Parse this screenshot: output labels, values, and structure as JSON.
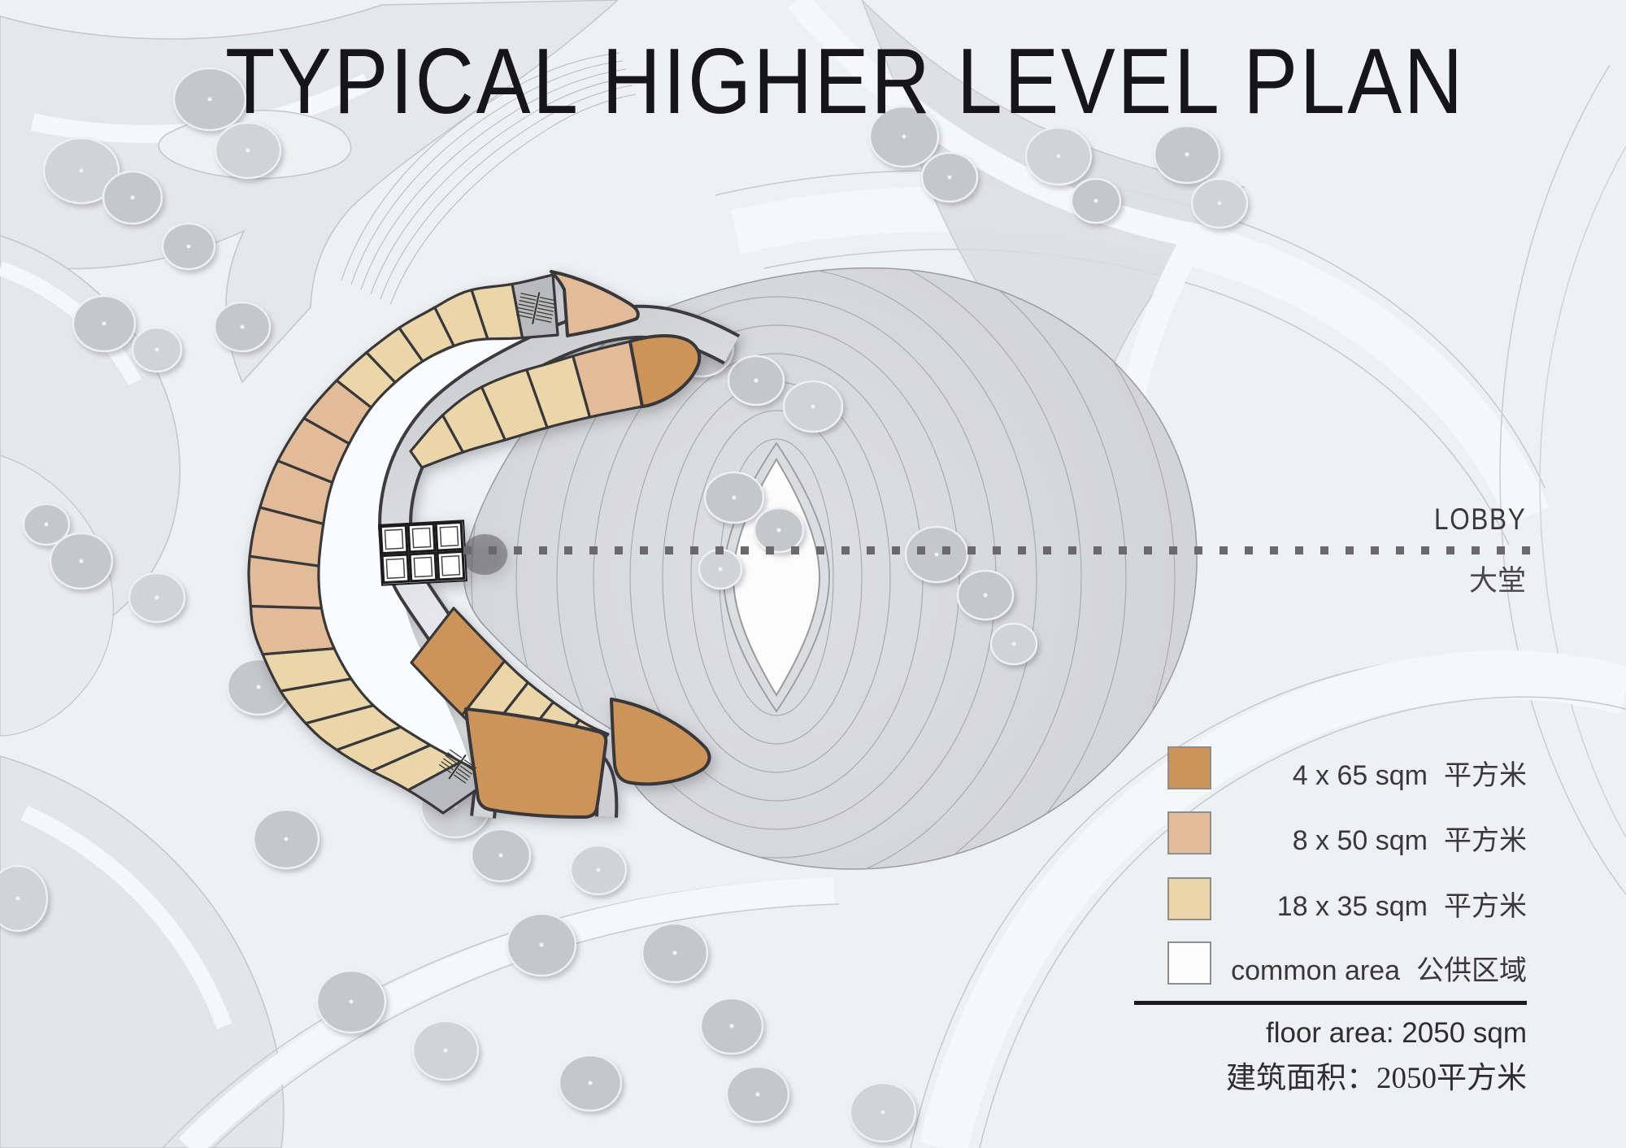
{
  "title": "TYPICAL HIGHER LEVEL PLAN",
  "lobby": {
    "label_en": "LOBBY",
    "label_zh": "大堂"
  },
  "legend": {
    "items": [
      {
        "id": "unit-65",
        "color": "#cc9458",
        "label_en": "4 x 65 sqm",
        "label_zh": "平方米"
      },
      {
        "id": "unit-50",
        "color": "#e2bb98",
        "label_en": "8 x 50 sqm",
        "label_zh": "平方米"
      },
      {
        "id": "unit-35",
        "color": "#ead6a9",
        "label_en": "18 x 35 sqm",
        "label_zh": "平方米"
      },
      {
        "id": "common-area",
        "color": "#fdfdfe",
        "label_en": "common area",
        "label_zh": "公供区域"
      }
    ]
  },
  "floor_area": {
    "line_en": "floor area: 2050 sqm",
    "line_zh": "建筑面积：2050平方米"
  },
  "plan": {
    "unit_mix": [
      {
        "type": "65 sqm",
        "count": 4
      },
      {
        "type": "50 sqm",
        "count": 8
      },
      {
        "type": "35 sqm",
        "count": 18
      }
    ],
    "bands": {
      "outer_run": [
        "stair",
        "35",
        "35",
        "35",
        "35",
        "35",
        "50",
        "50",
        "50",
        "50",
        "50",
        "50",
        "35",
        "35",
        "35",
        "35",
        "35",
        "stair"
      ],
      "outer_north_tip": "50",
      "outer_south_tip": "65",
      "inner_upper_run": [
        "35",
        "35",
        "35",
        "35",
        "50"
      ],
      "inner_upper_tip": "65",
      "inner_lower_run": [
        "65",
        "35",
        "35",
        "35",
        "35"
      ],
      "inner_lower_tip": "65"
    }
  },
  "colors": {
    "bg": "#eef0f2",
    "unit_65": "#cc9458",
    "unit_50": "#e2bb98",
    "unit_35": "#ead6a9",
    "common": "#fdfdfe",
    "stair_unit": "#b9babc",
    "outline": "#38383a",
    "path_edge": "#3c3c3e",
    "courtyard": "#fafbfc",
    "fan_fill": "#d7d8da",
    "fan_line": "#aaabad",
    "lens_fill": "#fcfcfd",
    "lens_stroke": "#9a9b9d",
    "tree": "#c6c7c9",
    "tree_light": "#d2d3d5",
    "swoosh": "#e6e7e9",
    "swoosh_line": "#c5c6c8",
    "ribbon": "#f6f7f8",
    "dotted": "#69696b"
  }
}
